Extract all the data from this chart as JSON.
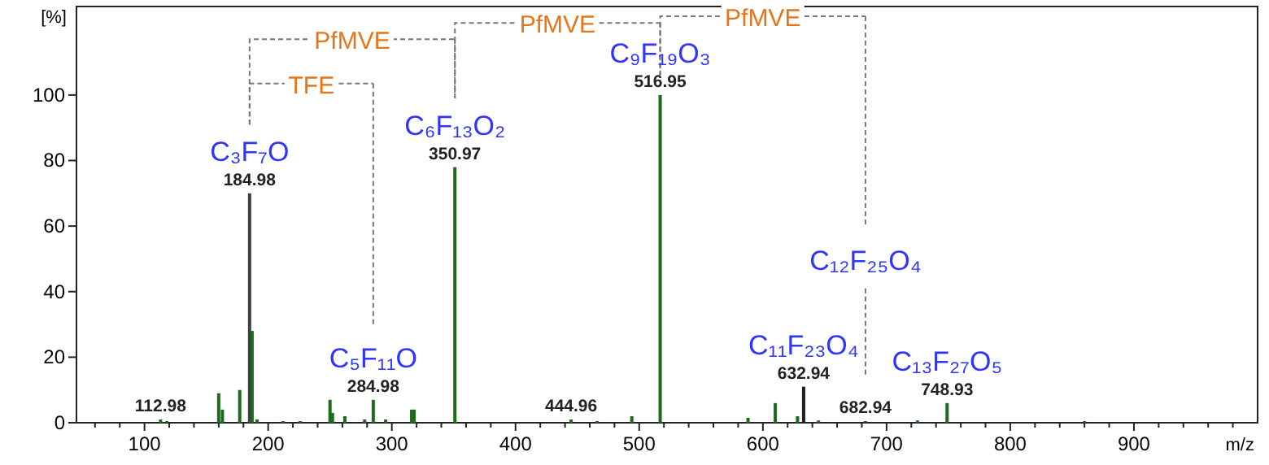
{
  "chart_data": {
    "type": "bar",
    "ylabel": "[%]",
    "xlabel": "m/z",
    "x": [
      112.98,
      118,
      160,
      163,
      177,
      184.98,
      187,
      191,
      212,
      226,
      250,
      252,
      262,
      278,
      284.98,
      295,
      316,
      318,
      350.97,
      444.96,
      466,
      494,
      516.95,
      588,
      610,
      628,
      632.94,
      645,
      682.94,
      725,
      748.93,
      860
    ],
    "values": [
      1,
      0.5,
      9,
      4,
      10,
      70,
      28,
      1,
      0.5,
      0.5,
      7,
      3,
      2,
      1,
      7,
      1,
      4,
      4,
      78,
      1,
      0.5,
      2,
      100,
      1.5,
      6,
      2,
      11,
      0.7,
      0.5,
      0.7,
      6,
      0.5
    ],
    "colors": [
      "#1e6b1e",
      "#1e6b1e",
      "#1e6b1e",
      "#1e6b1e",
      "#1e6b1e",
      "#404040",
      "#1e6b1e",
      "#1e6b1e",
      "#1e6b1e",
      "#1e6b1e",
      "#1e6b1e",
      "#1e6b1e",
      "#1e6b1e",
      "#1e6b1e",
      "#1e6b1e",
      "#1e6b1e",
      "#1e6b1e",
      "#1e6b1e",
      "#1e6b1e",
      "#1e6b1e",
      "#1e6b1e",
      "#1e6b1e",
      "#1e6b1e",
      "#1e6b1e",
      "#1e6b1e",
      "#1e6b1e",
      "#202020",
      "#1e6b1e",
      "#404040",
      "#1e6b1e",
      "#1e6b1e",
      "#1e6b1e"
    ],
    "xlim": [
      45,
      1000
    ],
    "xticks": [
      {
        "value": 60,
        "label": null
      },
      {
        "value": 80,
        "label": null
      },
      100,
      {
        "value": 120,
        "label": null
      },
      {
        "value": 140,
        "label": null
      },
      {
        "value": 160,
        "label": null
      },
      {
        "value": 180,
        "label": null
      },
      200,
      {
        "value": 220,
        "label": null
      },
      {
        "value": 240,
        "label": null
      },
      {
        "value": 260,
        "label": null
      },
      {
        "value": 280,
        "label": null
      },
      300,
      {
        "value": 320,
        "label": null
      },
      {
        "value": 340,
        "label": null
      },
      {
        "value": 360,
        "label": null
      },
      {
        "value": 380,
        "label": null
      },
      400,
      {
        "value": 420,
        "label": null
      },
      {
        "value": 440,
        "label": null
      },
      {
        "value": 460,
        "label": null
      },
      {
        "value": 480,
        "label": null
      },
      500,
      {
        "value": 520,
        "label": null
      },
      {
        "value": 540,
        "label": null
      },
      {
        "value": 560,
        "label": null
      },
      {
        "value": 580,
        "label": null
      },
      600,
      {
        "value": 620,
        "label": null
      },
      {
        "value": 640,
        "label": null
      },
      {
        "value": 660,
        "label": null
      },
      {
        "value": 680,
        "label": null
      },
      700,
      {
        "value": 720,
        "label": null
      },
      {
        "value": 740,
        "label": null
      },
      {
        "value": 760,
        "label": null
      },
      {
        "value": 780,
        "label": null
      },
      800,
      {
        "value": 820,
        "label": null
      },
      {
        "value": 840,
        "label": null
      },
      {
        "value": 860,
        "label": null
      },
      {
        "value": 880,
        "label": null
      },
      900,
      {
        "value": 920,
        "label": null
      },
      {
        "value": 940,
        "label": null
      },
      {
        "value": 960,
        "label": null
      },
      {
        "value": 980,
        "label": null
      }
    ],
    "ylim": [
      0,
      127
    ],
    "yticks": [
      0,
      20,
      40,
      60,
      80,
      100
    ],
    "annotations": [
      {
        "text": "112.98",
        "x": 112.98,
        "y": 1
      },
      {
        "text": "184.98",
        "x": 184.98,
        "y": 70
      },
      {
        "text": "C₃F₇O",
        "x": 184.98,
        "y": 70
      },
      {
        "text": "284.98",
        "x": 284.98,
        "y": 7
      },
      {
        "text": "C₅F₁₁O",
        "x": 284.98,
        "y": 7
      },
      {
        "text": "350.97",
        "x": 350.97,
        "y": 78
      },
      {
        "text": "C₆F₁₃O₂",
        "x": 350.97,
        "y": 78
      },
      {
        "text": "444.96",
        "x": 444.96,
        "y": 1
      },
      {
        "text": "516.95",
        "x": 516.95,
        "y": 100
      },
      {
        "text": "C₉F₁₉O₃",
        "x": 516.95,
        "y": 100
      },
      {
        "text": "632.94",
        "x": 632.94,
        "y": 11
      },
      {
        "text": "C₁₁F₂₃O₄",
        "x": 632.94,
        "y": 11
      },
      {
        "text": "682.94",
        "x": 682.94,
        "y": 0.5
      },
      "C₁₂F₂₅O₄",
      {
        "text": "748.93",
        "x": 748.93,
        "y": 6
      },
      {
        "text": "C₁₃F₂₇O₅",
        "x": 748.93,
        "y": 6
      },
      "TFE",
      "PfMVE",
      "PfMVE",
      "PfMVE"
    ]
  }
}
